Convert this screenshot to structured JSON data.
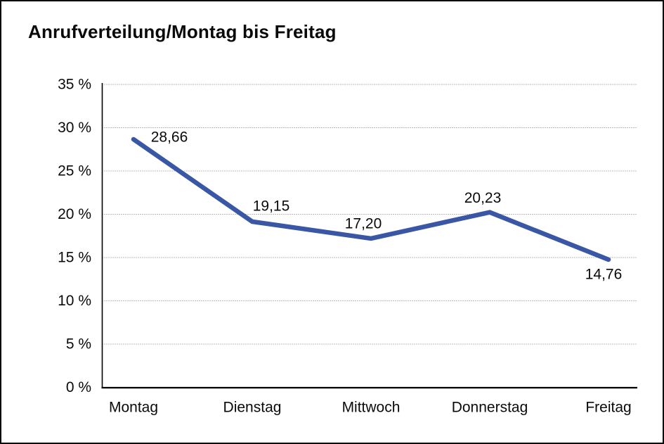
{
  "window": {
    "type": "static-chart-image"
  },
  "chart_data": {
    "type": "line",
    "title": "Anrufverteilung/Montag bis Freitag",
    "categories": [
      "Montag",
      "Dienstag",
      "Mittwoch",
      "Donnerstag",
      "Freitag"
    ],
    "series": [
      {
        "name": "Anrufverteilung",
        "values": [
          28.66,
          19.15,
          17.2,
          20.23,
          14.76
        ],
        "point_labels": [
          "28,66",
          "19,15",
          "17,20",
          "20,23",
          "14,76"
        ]
      }
    ],
    "xlabel": "",
    "ylabel": "",
    "ylim": [
      0,
      35
    ],
    "y_tick_values": [
      0,
      5,
      10,
      15,
      20,
      25,
      30,
      35
    ],
    "y_tick_labels": [
      "0 %",
      "5 %",
      "10 %",
      "15 %",
      "20 %",
      "25 %",
      "30 %",
      "35 %"
    ],
    "grid": "horizontal-dotted",
    "legend": "none",
    "decimal_separator": ",",
    "colors": {
      "line": "#3A57A5",
      "axis": "#000000",
      "gridline": "#7a7a7a",
      "text": "#0a0a0a",
      "background": "#ffffff"
    }
  }
}
